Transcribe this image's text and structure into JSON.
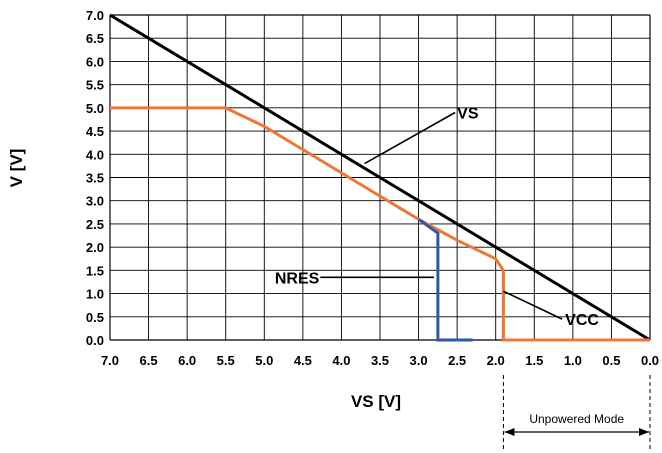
{
  "chart_data": {
    "type": "line",
    "xlabel": "VS [V]",
    "ylabel": "V [V]",
    "xlim": [
      7.0,
      0.0
    ],
    "ylim": [
      0.0,
      7.0
    ],
    "x_ticks": [
      "7.0",
      "6.5",
      "6.0",
      "5.5",
      "5.0",
      "4.5",
      "4.0",
      "3.5",
      "3.0",
      "2.5",
      "2.0",
      "1.5",
      "1.0",
      "0.5",
      "0.0"
    ],
    "y_ticks": [
      "7.0",
      "6.5",
      "6.0",
      "5.5",
      "5.0",
      "4.5",
      "4.0",
      "3.5",
      "3.0",
      "2.5",
      "2.0",
      "1.5",
      "1.0",
      "0.5",
      "0.0"
    ],
    "grid": true,
    "series": [
      {
        "name": "VS",
        "color": "#000000",
        "points": [
          [
            7.0,
            7.0
          ],
          [
            0.0,
            0.0
          ]
        ]
      },
      {
        "name": "VCC",
        "color": "#ee7733",
        "points": [
          [
            7.0,
            5.0
          ],
          [
            5.5,
            5.0
          ],
          [
            5.0,
            4.6
          ],
          [
            4.5,
            4.1
          ],
          [
            4.0,
            3.6
          ],
          [
            3.5,
            3.1
          ],
          [
            3.0,
            2.6
          ],
          [
            2.5,
            2.15
          ],
          [
            2.0,
            1.75
          ],
          [
            1.9,
            1.5
          ],
          [
            1.9,
            0.0
          ],
          [
            0.0,
            0.0
          ]
        ]
      },
      {
        "name": "NRES",
        "color": "#3355aa",
        "points": [
          [
            3.0,
            2.6
          ],
          [
            2.75,
            2.3
          ],
          [
            2.75,
            0.0
          ],
          [
            2.3,
            0.0
          ]
        ]
      }
    ],
    "annotations": [
      {
        "label": "VS",
        "x": 3.7,
        "y": 3.8,
        "label_at": [
          2.5,
          4.9
        ]
      },
      {
        "label": "VCC",
        "x": 1.9,
        "y": 1.05,
        "label_at": [
          1.1,
          0.45
        ]
      },
      {
        "label": "NRES",
        "x": 2.8,
        "y": 1.35,
        "label_at": [
          4.3,
          1.35
        ]
      }
    ],
    "region": {
      "label": "Unpowered Mode",
      "x_range": [
        1.9,
        0.0
      ]
    }
  }
}
